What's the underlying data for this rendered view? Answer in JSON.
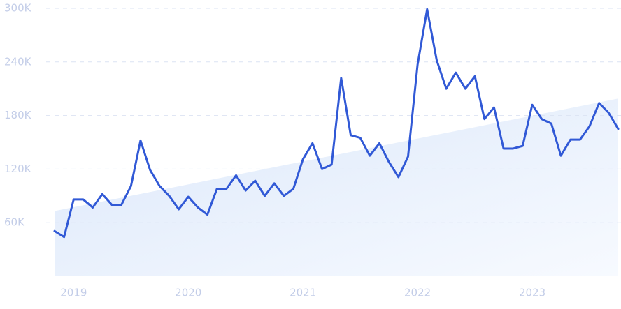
{
  "chart_data": {
    "type": "line",
    "categories": [
      null,
      null,
      "2019",
      null,
      null,
      null,
      null,
      null,
      null,
      null,
      null,
      null,
      null,
      null,
      "2020",
      null,
      null,
      null,
      null,
      null,
      null,
      null,
      null,
      null,
      null,
      null,
      "2021",
      null,
      null,
      null,
      null,
      null,
      null,
      null,
      null,
      null,
      null,
      null,
      "2022",
      null,
      null,
      null,
      null,
      null,
      null,
      null,
      null,
      null,
      null,
      null,
      "2023",
      null,
      null,
      null,
      null,
      null,
      null,
      null,
      null,
      null
    ],
    "series": [
      {
        "color": "#3159d6",
        "values": [
          50600,
          44000,
          86000,
          86000,
          77000,
          92000,
          80000,
          80000,
          101000,
          152000,
          119000,
          101000,
          90000,
          75000,
          89000,
          77000,
          69000,
          98000,
          98000,
          113000,
          96000,
          107000,
          90000,
          104000,
          90000,
          98000,
          131000,
          149000,
          120000,
          125000,
          222000,
          158000,
          155000,
          135000,
          149000,
          128000,
          111000,
          134000,
          237000,
          299000,
          242000,
          210000,
          228000,
          210000,
          224000,
          176000,
          189000,
          143000,
          143000,
          146000,
          192000,
          176000,
          171000,
          135000,
          153000,
          153000,
          168000,
          194000,
          183000,
          165000
        ]
      }
    ],
    "trend": [
      73000,
      199000
    ],
    "ylim": [
      0,
      300000
    ],
    "yticks": [
      {
        "value": 60000,
        "label": "60K"
      },
      {
        "value": 120000,
        "label": "120K"
      },
      {
        "value": 180000,
        "label": "180K"
      },
      {
        "value": 240000,
        "label": "240K"
      },
      {
        "value": 300000,
        "label": "300K"
      }
    ],
    "grid": true
  }
}
